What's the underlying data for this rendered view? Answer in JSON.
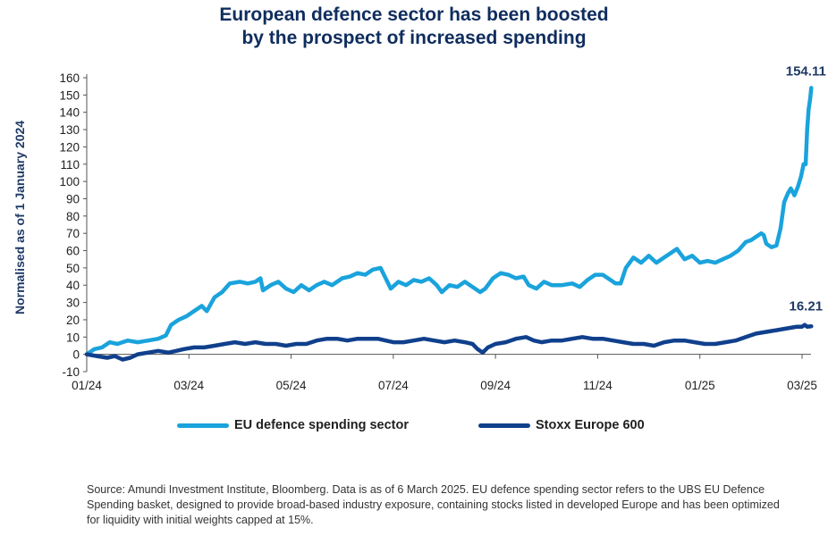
{
  "chart_data": {
    "type": "line",
    "title_lines": [
      "European defence sector has been boosted",
      "by the prospect of increased spending"
    ],
    "ylabel": "Normalised as of 1 January 2024",
    "xlabel": "",
    "ylim": [
      -10,
      160
    ],
    "yticks": [
      -10,
      0,
      10,
      20,
      30,
      40,
      50,
      60,
      70,
      80,
      90,
      100,
      110,
      120,
      130,
      140,
      150,
      160
    ],
    "xlim": [
      0,
      14.2
    ],
    "xticks": [
      {
        "t": 0,
        "label": "01/24"
      },
      {
        "t": 2,
        "label": "03/24"
      },
      {
        "t": 4,
        "label": "05/24"
      },
      {
        "t": 6,
        "label": "07/24"
      },
      {
        "t": 8,
        "label": "09/24"
      },
      {
        "t": 10,
        "label": "11/24"
      },
      {
        "t": 12,
        "label": "01/25"
      },
      {
        "t": 14,
        "label": "03/25"
      }
    ],
    "series": [
      {
        "name": "EU defence spending sector",
        "color": "#1aa3dc",
        "end_label": "154.11",
        "points": [
          [
            0,
            0
          ],
          [
            0.15,
            3
          ],
          [
            0.3,
            4
          ],
          [
            0.45,
            7
          ],
          [
            0.6,
            6
          ],
          [
            0.8,
            8
          ],
          [
            1.0,
            7
          ],
          [
            1.2,
            8
          ],
          [
            1.4,
            9
          ],
          [
            1.55,
            11
          ],
          [
            1.65,
            17
          ],
          [
            1.8,
            20
          ],
          [
            1.95,
            22
          ],
          [
            2.1,
            25
          ],
          [
            2.25,
            28
          ],
          [
            2.35,
            25
          ],
          [
            2.5,
            33
          ],
          [
            2.65,
            36
          ],
          [
            2.8,
            41
          ],
          [
            3.0,
            42
          ],
          [
            3.15,
            41
          ],
          [
            3.3,
            42
          ],
          [
            3.4,
            44
          ],
          [
            3.45,
            37
          ],
          [
            3.6,
            40
          ],
          [
            3.75,
            42
          ],
          [
            3.9,
            38
          ],
          [
            4.05,
            36
          ],
          [
            4.2,
            40
          ],
          [
            4.35,
            37
          ],
          [
            4.5,
            40
          ],
          [
            4.65,
            42
          ],
          [
            4.8,
            40
          ],
          [
            5.0,
            44
          ],
          [
            5.15,
            45
          ],
          [
            5.3,
            47
          ],
          [
            5.45,
            46
          ],
          [
            5.6,
            49
          ],
          [
            5.75,
            50
          ],
          [
            5.85,
            44
          ],
          [
            5.95,
            38
          ],
          [
            6.1,
            42
          ],
          [
            6.25,
            40
          ],
          [
            6.4,
            43
          ],
          [
            6.55,
            42
          ],
          [
            6.7,
            44
          ],
          [
            6.85,
            40
          ],
          [
            6.95,
            36
          ],
          [
            7.1,
            40
          ],
          [
            7.25,
            39
          ],
          [
            7.4,
            42
          ],
          [
            7.55,
            39
          ],
          [
            7.7,
            36
          ],
          [
            7.8,
            38
          ],
          [
            7.95,
            44
          ],
          [
            8.1,
            47
          ],
          [
            8.25,
            46
          ],
          [
            8.4,
            44
          ],
          [
            8.55,
            45
          ],
          [
            8.65,
            40
          ],
          [
            8.8,
            38
          ],
          [
            8.95,
            42
          ],
          [
            9.1,
            40
          ],
          [
            9.3,
            40
          ],
          [
            9.5,
            41
          ],
          [
            9.65,
            39
          ],
          [
            9.8,
            43
          ],
          [
            9.95,
            46
          ],
          [
            10.1,
            46
          ],
          [
            10.25,
            43
          ],
          [
            10.35,
            41
          ],
          [
            10.45,
            41
          ],
          [
            10.55,
            50
          ],
          [
            10.7,
            56
          ],
          [
            10.85,
            53
          ],
          [
            11.0,
            57
          ],
          [
            11.15,
            53
          ],
          [
            11.3,
            56
          ],
          [
            11.45,
            59
          ],
          [
            11.55,
            61
          ],
          [
            11.7,
            55
          ],
          [
            11.85,
            57
          ],
          [
            12.0,
            53
          ],
          [
            12.15,
            54
          ],
          [
            12.3,
            53
          ],
          [
            12.45,
            55
          ],
          [
            12.6,
            57
          ],
          [
            12.75,
            60
          ],
          [
            12.9,
            65
          ],
          [
            13.0,
            66
          ],
          [
            13.1,
            68
          ],
          [
            13.2,
            70
          ],
          [
            13.25,
            69
          ],
          [
            13.3,
            64
          ],
          [
            13.4,
            62
          ],
          [
            13.5,
            63
          ],
          [
            13.58,
            73
          ],
          [
            13.65,
            88
          ],
          [
            13.72,
            93
          ],
          [
            13.78,
            96
          ],
          [
            13.85,
            92
          ],
          [
            13.92,
            97
          ],
          [
            13.98,
            103
          ],
          [
            14.03,
            110
          ],
          [
            14.07,
            110
          ],
          [
            14.1,
            130
          ],
          [
            14.13,
            142
          ],
          [
            14.16,
            148
          ],
          [
            14.18,
            154.11
          ]
        ]
      },
      {
        "name": "Stoxx Europe 600",
        "color": "#10408c",
        "end_label": "16.21",
        "points": [
          [
            0,
            0
          ],
          [
            0.2,
            -1
          ],
          [
            0.4,
            -2
          ],
          [
            0.55,
            -1
          ],
          [
            0.7,
            -3
          ],
          [
            0.85,
            -2
          ],
          [
            1.0,
            0
          ],
          [
            1.2,
            1
          ],
          [
            1.4,
            2
          ],
          [
            1.6,
            1
          ],
          [
            1.75,
            2
          ],
          [
            1.9,
            3
          ],
          [
            2.1,
            4
          ],
          [
            2.3,
            4
          ],
          [
            2.5,
            5
          ],
          [
            2.7,
            6
          ],
          [
            2.9,
            7
          ],
          [
            3.1,
            6
          ],
          [
            3.3,
            7
          ],
          [
            3.5,
            6
          ],
          [
            3.7,
            6
          ],
          [
            3.9,
            5
          ],
          [
            4.1,
            6
          ],
          [
            4.3,
            6
          ],
          [
            4.5,
            8
          ],
          [
            4.7,
            9
          ],
          [
            4.9,
            9
          ],
          [
            5.1,
            8
          ],
          [
            5.3,
            9
          ],
          [
            5.5,
            9
          ],
          [
            5.7,
            9
          ],
          [
            5.85,
            8
          ],
          [
            6.0,
            7
          ],
          [
            6.2,
            7
          ],
          [
            6.4,
            8
          ],
          [
            6.6,
            9
          ],
          [
            6.8,
            8
          ],
          [
            7.0,
            7
          ],
          [
            7.2,
            8
          ],
          [
            7.4,
            7
          ],
          [
            7.55,
            6
          ],
          [
            7.65,
            3
          ],
          [
            7.75,
            1
          ],
          [
            7.85,
            4
          ],
          [
            8.0,
            6
          ],
          [
            8.2,
            7
          ],
          [
            8.4,
            9
          ],
          [
            8.6,
            10
          ],
          [
            8.75,
            8
          ],
          [
            8.9,
            7
          ],
          [
            9.1,
            8
          ],
          [
            9.3,
            8
          ],
          [
            9.5,
            9
          ],
          [
            9.7,
            10
          ],
          [
            9.9,
            9
          ],
          [
            10.1,
            9
          ],
          [
            10.3,
            8
          ],
          [
            10.5,
            7
          ],
          [
            10.7,
            6
          ],
          [
            10.9,
            6
          ],
          [
            11.1,
            5
          ],
          [
            11.3,
            7
          ],
          [
            11.5,
            8
          ],
          [
            11.7,
            8
          ],
          [
            11.9,
            7
          ],
          [
            12.1,
            6
          ],
          [
            12.3,
            6
          ],
          [
            12.5,
            7
          ],
          [
            12.7,
            8
          ],
          [
            12.9,
            10
          ],
          [
            13.1,
            12
          ],
          [
            13.3,
            13
          ],
          [
            13.5,
            14
          ],
          [
            13.7,
            15
          ],
          [
            13.9,
            16
          ],
          [
            14.0,
            16
          ],
          [
            14.05,
            17
          ],
          [
            14.1,
            16
          ],
          [
            14.18,
            16.21
          ]
        ]
      }
    ]
  },
  "source_text": "Source: Amundi Investment Institute, Bloomberg. Data is as of 6 March 2025. EU defence spending sector refers to the UBS EU Defence Spending basket, designed to provide broad-based industry exposure, containing stocks listed in developed Europe and has been optimized for liquidity with initial weights capped at 15%."
}
